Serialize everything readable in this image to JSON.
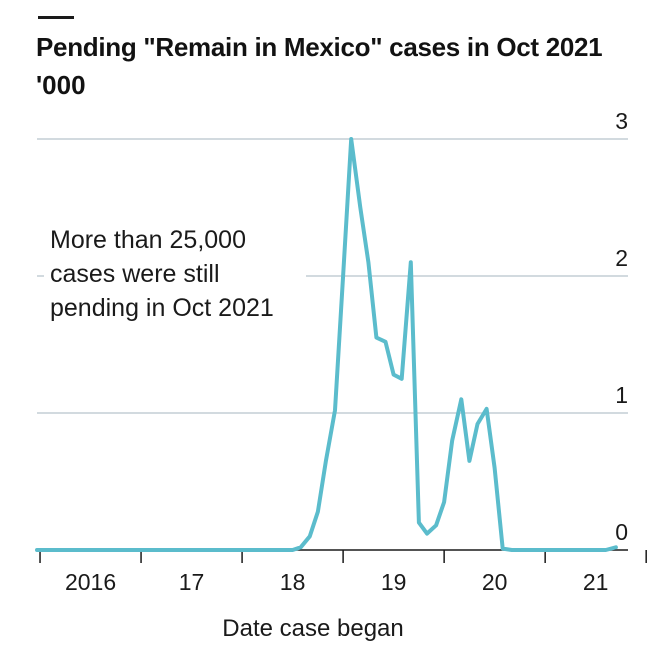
{
  "title": "Pending \"Remain in Mexico\" cases in Oct 2021",
  "subtitle": "'000",
  "annotation": [
    "More than 25,000",
    "cases were still",
    "pending in Oct 2021"
  ],
  "colors": {
    "line": "#5bbccc",
    "grid": "#b7c4cc",
    "axis": "#1a1a1a",
    "text": "#1a1a1a"
  },
  "chart_data": {
    "type": "line",
    "title": "Pending \"Remain in Mexico\" cases in Oct 2021",
    "subtitle": "'000",
    "xlabel": "Date case began",
    "ylabel": "",
    "ylim": [
      0,
      3
    ],
    "xlim": [
      2015.97,
      2021.82
    ],
    "grid": "horizontal",
    "yticks": [
      {
        "value": 0,
        "label": "0"
      },
      {
        "value": 1,
        "label": "1"
      },
      {
        "value": 2,
        "label": "2"
      },
      {
        "value": 3,
        "label": "3"
      }
    ],
    "xticks": [
      {
        "value": 2016,
        "label": "2016"
      },
      {
        "value": 2017,
        "label": "17"
      },
      {
        "value": 2018,
        "label": "18"
      },
      {
        "value": 2019,
        "label": "19"
      },
      {
        "value": 2020,
        "label": "20"
      },
      {
        "value": 2021,
        "label": "21"
      }
    ],
    "x_tick_marks": [
      2016,
      2017,
      2018,
      2019,
      2020,
      2021,
      2022
    ],
    "series": [
      {
        "x": [
          2015.97,
          2018.5,
          2018.58,
          2018.67,
          2018.75,
          2018.83,
          2018.92,
          2019.0,
          2019.08,
          2019.17,
          2019.25,
          2019.33,
          2019.42,
          2019.5,
          2019.58,
          2019.67,
          2019.75,
          2019.83,
          2019.92,
          2020.0,
          2020.08,
          2020.17,
          2020.25,
          2020.33,
          2020.42,
          2020.5,
          2020.58,
          2020.67,
          2020.75,
          2020.83,
          2020.92,
          2021.0,
          2021.08,
          2021.17,
          2021.25,
          2021.33,
          2021.42,
          2021.5,
          2021.6,
          2021.7
        ],
        "values": [
          0,
          0,
          0.02,
          0.1,
          0.28,
          0.65,
          1.02,
          2.0,
          3.0,
          2.5,
          2.1,
          1.55,
          1.52,
          1.28,
          1.25,
          2.1,
          0.2,
          0.12,
          0.18,
          0.35,
          0.8,
          1.1,
          0.65,
          0.92,
          1.03,
          0.6,
          0.01,
          0,
          0,
          0,
          0,
          0,
          0,
          0,
          0,
          0,
          0,
          0,
          0,
          0.02
        ]
      }
    ]
  }
}
